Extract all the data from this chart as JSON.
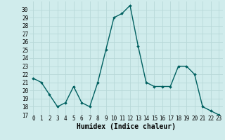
{
  "xlabel": "Humidex (Indice chaleur)",
  "x": [
    0,
    1,
    2,
    3,
    4,
    5,
    6,
    7,
    8,
    9,
    10,
    11,
    12,
    13,
    14,
    15,
    16,
    17,
    18,
    19,
    20,
    21,
    22,
    23
  ],
  "y": [
    21.5,
    21.0,
    19.5,
    18.0,
    18.5,
    20.5,
    18.5,
    18.0,
    21.0,
    25.0,
    29.0,
    29.5,
    30.5,
    25.5,
    21.0,
    20.5,
    20.5,
    20.5,
    23.0,
    23.0,
    22.0,
    18.0,
    17.5,
    17.0
  ],
  "line_color": "#006060",
  "marker": "D",
  "marker_size": 1.8,
  "background_color": "#d0ecec",
  "grid_color": "#b8d8d8",
  "ylim": [
    17,
    31
  ],
  "yticks": [
    17,
    18,
    19,
    20,
    21,
    22,
    23,
    24,
    25,
    26,
    27,
    28,
    29,
    30
  ],
  "xticks": [
    0,
    1,
    2,
    3,
    4,
    5,
    6,
    7,
    8,
    9,
    10,
    11,
    12,
    13,
    14,
    15,
    16,
    17,
    18,
    19,
    20,
    21,
    22,
    23
  ],
  "tick_fontsize": 5.5,
  "label_fontsize": 7,
  "line_width": 1.0
}
